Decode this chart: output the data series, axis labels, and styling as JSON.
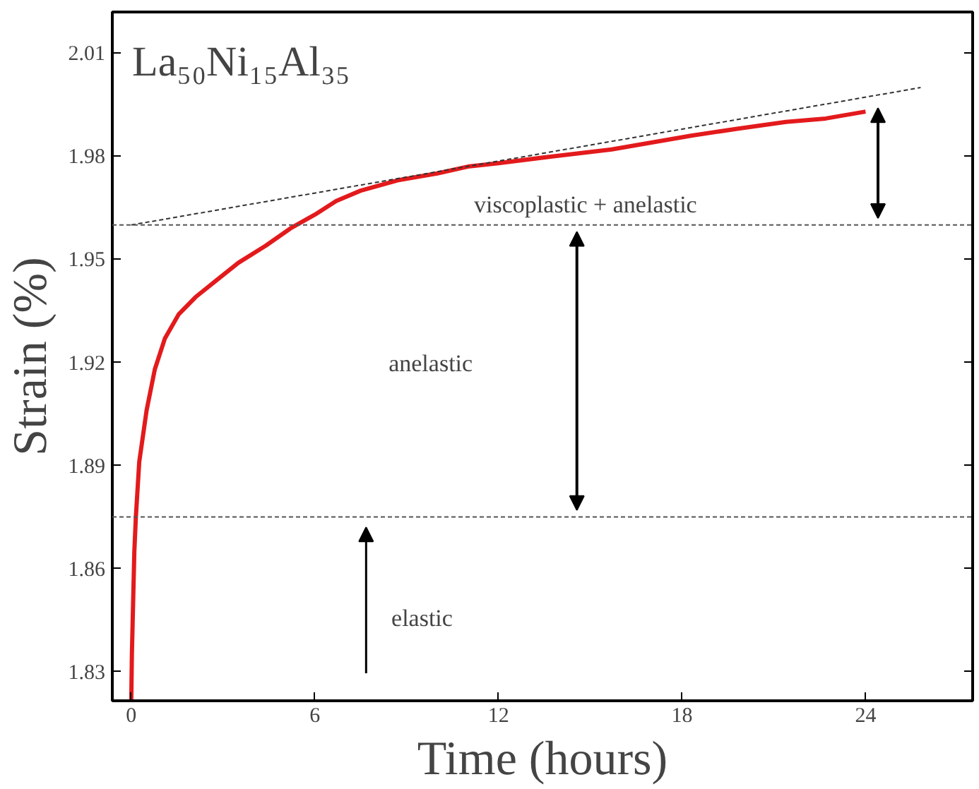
{
  "chart_data": {
    "type": "line",
    "title": "La₅₀Ni₁₅Al₃₅",
    "xlabel": "Time (hours)",
    "ylabel": "Strain (%)",
    "x": [
      0,
      0.02,
      0.06,
      0.1,
      0.15,
      0.26,
      0.5,
      0.77,
      1.1,
      1.55,
      2.1,
      2.8,
      3.5,
      4.4,
      5.2,
      6,
      6.7,
      7.5,
      8.7,
      10,
      11,
      12,
      13.8,
      15.7,
      17,
      18.3,
      19.8,
      21.4,
      22.7,
      24
    ],
    "series": [
      {
        "color": "#e31a1c",
        "values": [
          1.8215,
          1.835,
          1.85,
          1.865,
          1.875,
          1.891,
          1.906,
          1.918,
          1.927,
          1.934,
          1.939,
          1.944,
          1.949,
          1.954,
          1.959,
          1.963,
          1.967,
          1.97,
          1.973,
          1.975,
          1.977,
          1.978,
          1.98,
          1.982,
          1.984,
          1.986,
          1.988,
          1.99,
          1.991,
          1.993
        ]
      },
      {
        "type": "line",
        "line_style": "dashed",
        "color": "#333333",
        "x": [
          0,
          25.8
        ],
        "values": [
          1.96,
          2.0
        ]
      }
    ],
    "xlim": [
      -0.62,
      27.5
    ],
    "ylim": [
      1.8215,
      2.022
    ],
    "xticks": [
      0,
      6,
      12,
      18,
      24
    ],
    "yticks": [
      1.83,
      1.86,
      1.89,
      1.92,
      1.95,
      1.98,
      2.01
    ],
    "ref_lines": [
      {
        "axis": "y",
        "value": 1.96,
        "line_style": "dashed",
        "color": "#555555"
      },
      {
        "axis": "y",
        "value": 1.875,
        "line_style": "dashed",
        "color": "#555555"
      }
    ],
    "annotations": [
      "elastic",
      "anelastic",
      "viscoplastic + anelastic"
    ],
    "grid": false,
    "marker": "none"
  }
}
